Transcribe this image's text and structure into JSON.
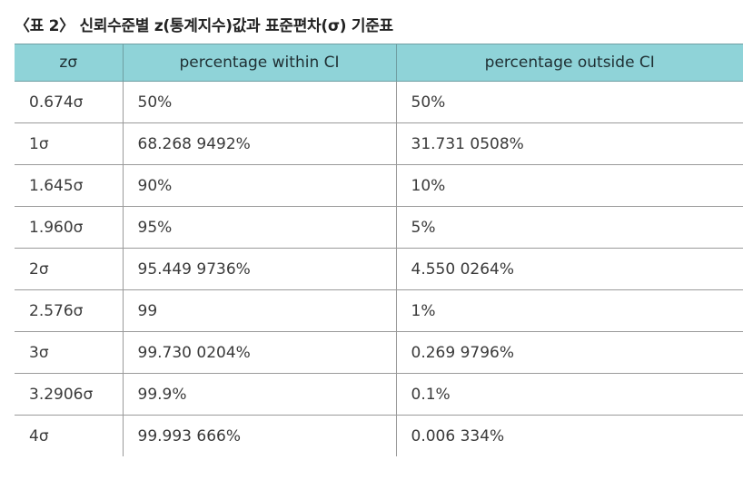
{
  "caption": "〈표 2〉 신뢰수준별 z(통계지수)값과 표준편차(σ) 기준표",
  "table": {
    "headers": [
      "zσ",
      "percentage within CI",
      "percentage outside CI"
    ],
    "rows": [
      [
        "0.674σ",
        "50%",
        "50%"
      ],
      [
        "1σ",
        "68.268 9492%",
        "31.731 0508%"
      ],
      [
        "1.645σ",
        "90%",
        "10%"
      ],
      [
        "1.960σ",
        "95%",
        "5%"
      ],
      [
        "2σ",
        "95.449 9736%",
        "4.550 0264%"
      ],
      [
        "2.576σ",
        "99",
        "1%"
      ],
      [
        "3σ",
        "99.730 0204%",
        "0.269 9796%"
      ],
      [
        "3.2906σ",
        "99.9%",
        "0.1%"
      ],
      [
        "4σ",
        "99.993 666%",
        "0.006 334%"
      ]
    ]
  },
  "colors": {
    "header_bg": "#8fd3d8",
    "grid": "#9a9a9a"
  }
}
